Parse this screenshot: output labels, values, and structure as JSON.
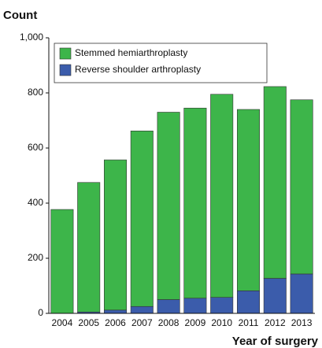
{
  "chart_data": {
    "type": "stacked_bar",
    "title": "Count",
    "x_label": "Year of surgery",
    "categories": [
      "2004",
      "2005",
      "2006",
      "2007",
      "2008",
      "2009",
      "2010",
      "2011",
      "2012",
      "2013"
    ],
    "series": [
      {
        "name": "Stemmed hemiarthroplasty",
        "color": "#3db54a",
        "values": [
          377,
          470,
          545,
          637,
          680,
          690,
          737,
          658,
          696,
          632
        ]
      },
      {
        "name": "Reverse shoulder arthroplasty",
        "color": "#3b5cab",
        "values": [
          0,
          5,
          12,
          25,
          50,
          55,
          58,
          82,
          127,
          143
        ]
      }
    ],
    "ylim": [
      0,
      1000
    ],
    "yticks": [
      0,
      200,
      400,
      600,
      800,
      {
        "value": 1000,
        "label": "1,000"
      }
    ],
    "legend": "top-left"
  }
}
